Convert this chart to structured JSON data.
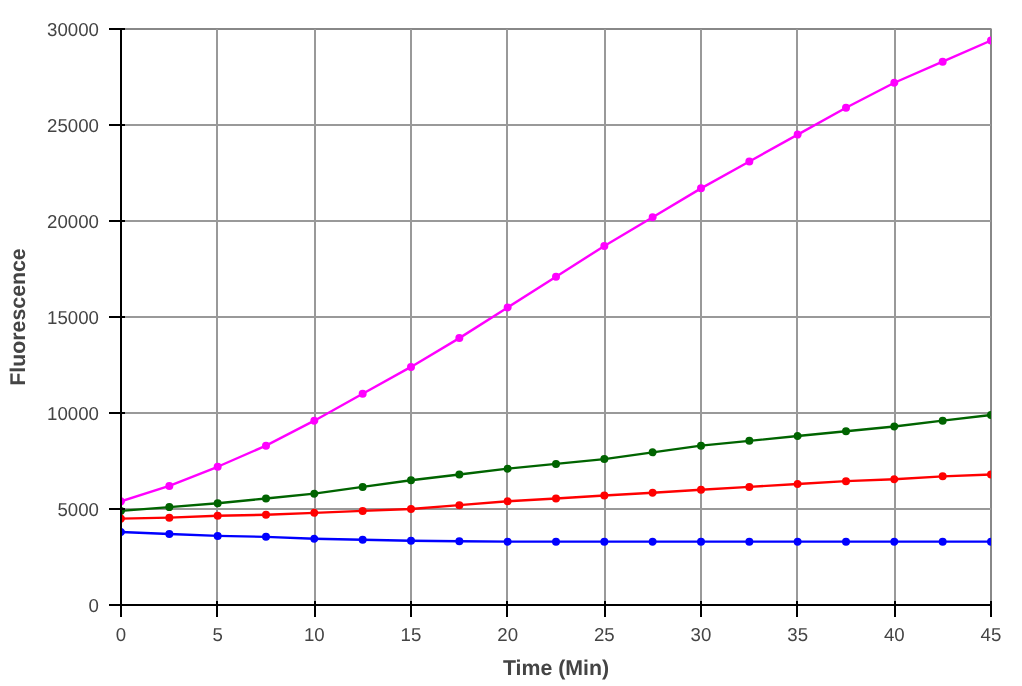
{
  "chart_data": {
    "type": "line",
    "xlabel": "Time (Min)",
    "ylabel": "Fluorescence",
    "x": [
      0,
      2.5,
      5,
      7.5,
      10,
      12.5,
      15,
      17.5,
      20,
      22.5,
      25,
      27.5,
      30,
      32.5,
      35,
      37.5,
      40,
      42.5,
      45
    ],
    "series": [
      {
        "color": "#ff00ff",
        "values": [
          5400,
          6200,
          7200,
          8300,
          9600,
          11000,
          12400,
          13900,
          15500,
          17100,
          18700,
          20200,
          21700,
          23100,
          24500,
          25900,
          27200,
          28300,
          29400
        ]
      },
      {
        "color": "#006400",
        "values": [
          4900,
          5100,
          5300,
          5550,
          5800,
          6150,
          6500,
          6800,
          7100,
          7350,
          7600,
          7950,
          8300,
          8550,
          8800,
          9050,
          9300,
          9600,
          9900
        ]
      },
      {
        "color": "#ff0000",
        "values": [
          4500,
          4550,
          4650,
          4700,
          4800,
          4900,
          5000,
          5200,
          5400,
          5550,
          5700,
          5850,
          6000,
          6150,
          6300,
          6450,
          6550,
          6700,
          6800
        ]
      },
      {
        "color": "#0000ff",
        "values": [
          3800,
          3700,
          3600,
          3550,
          3450,
          3400,
          3350,
          3320,
          3300,
          3300,
          3300,
          3300,
          3300,
          3300,
          3300,
          3300,
          3300,
          3300,
          3300
        ]
      }
    ],
    "xlim": [
      0,
      45
    ],
    "ylim": [
      0,
      30000
    ],
    "xticks": [
      0,
      5,
      10,
      15,
      20,
      25,
      30,
      35,
      40,
      45
    ],
    "yticks": [
      0,
      5000,
      10000,
      15000,
      20000,
      25000,
      30000
    ],
    "grid": true,
    "marker": "circle",
    "line_style": "solid"
  }
}
